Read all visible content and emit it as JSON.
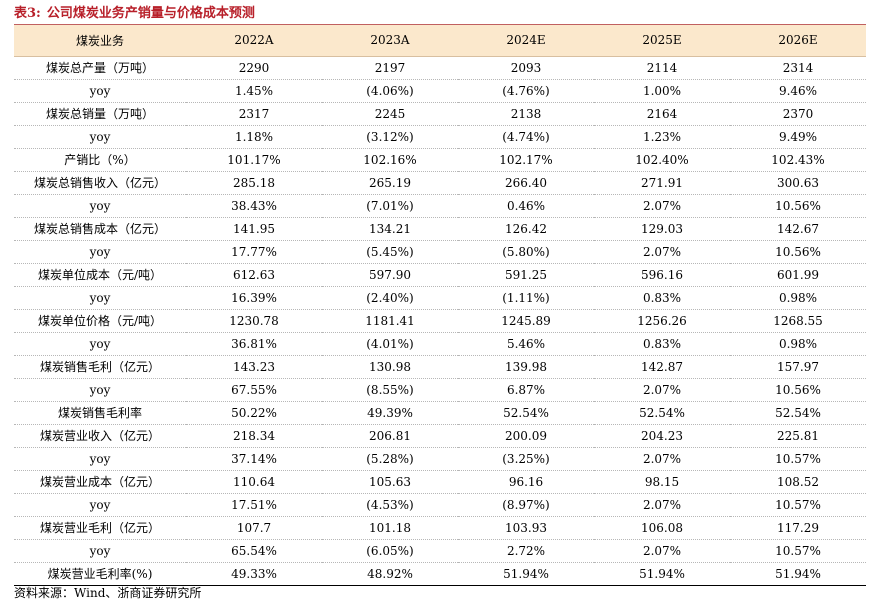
{
  "caption": {
    "number": "表3:",
    "title": "公司煤炭业务产销量与价格成本预测"
  },
  "table": {
    "headers": [
      "煤炭业务",
      "2022A",
      "2023A",
      "2024E",
      "2025E",
      "2026E"
    ],
    "rows": [
      [
        "煤炭总产量（万吨）",
        "2290",
        "2197",
        "2093",
        "2114",
        "2314"
      ],
      [
        "yoy",
        "1.45%",
        "(4.06%)",
        "(4.76%)",
        "1.00%",
        "9.46%"
      ],
      [
        "煤炭总销量（万吨）",
        "2317",
        "2245",
        "2138",
        "2164",
        "2370"
      ],
      [
        "yoy",
        "1.18%",
        "(3.12%)",
        "(4.74%)",
        "1.23%",
        "9.49%"
      ],
      [
        "产销比（%）",
        "101.17%",
        "102.16%",
        "102.17%",
        "102.40%",
        "102.43%"
      ],
      [
        "煤炭总销售收入（亿元）",
        "285.18",
        "265.19",
        "266.40",
        "271.91",
        "300.63"
      ],
      [
        "yoy",
        "38.43%",
        "(7.01%)",
        "0.46%",
        "2.07%",
        "10.56%"
      ],
      [
        "煤炭总销售成本（亿元）",
        "141.95",
        "134.21",
        "126.42",
        "129.03",
        "142.67"
      ],
      [
        "yoy",
        "17.77%",
        "(5.45%)",
        "(5.80%)",
        "2.07%",
        "10.56%"
      ],
      [
        "煤炭单位成本（元/吨）",
        "612.63",
        "597.90",
        "591.25",
        "596.16",
        "601.99"
      ],
      [
        "yoy",
        "16.39%",
        "(2.40%)",
        "(1.11%)",
        "0.83%",
        "0.98%"
      ],
      [
        "煤炭单位价格（元/吨）",
        "1230.78",
        "1181.41",
        "1245.89",
        "1256.26",
        "1268.55"
      ],
      [
        "yoy",
        "36.81%",
        "(4.01%)",
        "5.46%",
        "0.83%",
        "0.98%"
      ],
      [
        "煤炭销售毛利（亿元）",
        "143.23",
        "130.98",
        "139.98",
        "142.87",
        "157.97"
      ],
      [
        "yoy",
        "67.55%",
        "(8.55%)",
        "6.87%",
        "2.07%",
        "10.56%"
      ],
      [
        "煤炭销售毛利率",
        "50.22%",
        "49.39%",
        "52.54%",
        "52.54%",
        "52.54%"
      ],
      [
        "煤炭营业收入（亿元）",
        "218.34",
        "206.81",
        "200.09",
        "204.23",
        "225.81"
      ],
      [
        "yoy",
        "37.14%",
        "(5.28%)",
        "(3.25%)",
        "2.07%",
        "10.57%"
      ],
      [
        "煤炭营业成本（亿元）",
        "110.64",
        "105.63",
        "96.16",
        "98.15",
        "108.52"
      ],
      [
        "yoy",
        "17.51%",
        "(4.53%)",
        "(8.97%)",
        "2.07%",
        "10.57%"
      ],
      [
        "煤炭营业毛利（亿元）",
        "107.7",
        "101.18",
        "103.93",
        "106.08",
        "117.29"
      ],
      [
        "yoy",
        "65.54%",
        "(6.05%)",
        "2.72%",
        "2.07%",
        "10.57%"
      ],
      [
        "煤炭营业毛利率(%)",
        "49.33%",
        "48.92%",
        "51.94%",
        "51.94%",
        "51.94%"
      ]
    ]
  },
  "source": "资料来源：Wind、浙商证券研究所"
}
